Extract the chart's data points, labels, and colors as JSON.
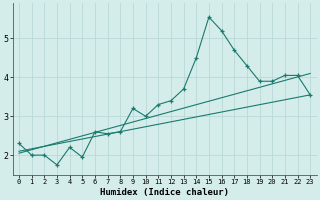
{
  "xlabel": "Humidex (Indice chaleur)",
  "bg_color": "#d4ecea",
  "grid_color": "#b8d8d8",
  "line_color": "#1a7a6e",
  "xlim": [
    -0.5,
    23.5
  ],
  "ylim": [
    1.5,
    5.9
  ],
  "xticks": [
    0,
    1,
    2,
    3,
    4,
    5,
    6,
    7,
    8,
    9,
    10,
    11,
    12,
    13,
    14,
    15,
    16,
    17,
    18,
    19,
    20,
    21,
    22,
    23
  ],
  "yticks": [
    2,
    3,
    4,
    5
  ],
  "main_x": [
    0,
    1,
    2,
    3,
    4,
    5,
    6,
    7,
    8,
    9,
    10,
    11,
    12,
    13,
    14,
    15,
    16,
    17,
    18,
    19,
    20,
    21,
    22,
    23
  ],
  "main_y": [
    2.3,
    2.0,
    2.0,
    1.75,
    2.2,
    1.95,
    2.6,
    2.55,
    2.6,
    3.2,
    3.0,
    3.3,
    3.4,
    3.7,
    4.5,
    5.55,
    5.2,
    4.7,
    4.3,
    3.9,
    3.9,
    4.05,
    4.05,
    3.55
  ],
  "line2_x": [
    0,
    23
  ],
  "line2_y": [
    2.1,
    3.55
  ],
  "line3_x": [
    0,
    23
  ],
  "line3_y": [
    2.05,
    4.1
  ]
}
